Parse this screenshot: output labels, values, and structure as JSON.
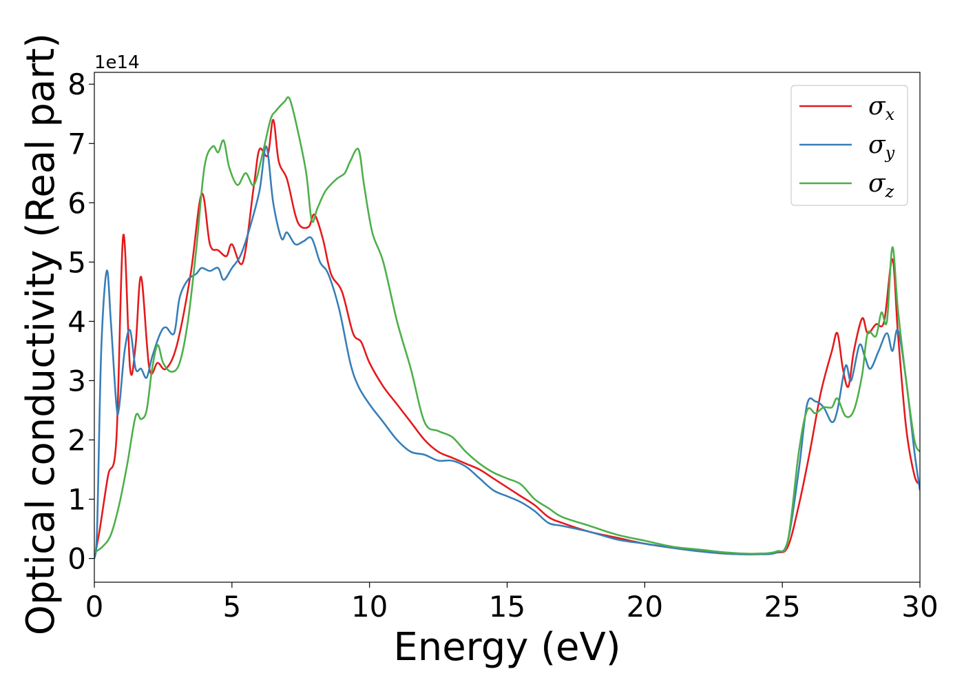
{
  "chart_data": {
    "type": "line",
    "title": "",
    "xlabel": "Energy (eV)",
    "ylabel": "Optical conductivity (Real part)",
    "y_offset_label": "1e14",
    "xlim": [
      0,
      30
    ],
    "ylim": [
      -0.4,
      8.2
    ],
    "xticks": [
      0,
      5,
      10,
      15,
      20,
      25,
      30
    ],
    "xtick_labels": [
      "0",
      "5",
      "10",
      "15",
      "20",
      "25",
      "30"
    ],
    "yticks": [
      0,
      1,
      2,
      3,
      4,
      5,
      6,
      7,
      8
    ],
    "ytick_labels": [
      "0",
      "1",
      "2",
      "3",
      "4",
      "5",
      "6",
      "7",
      "8"
    ],
    "grid": false,
    "legend_position": "top-right",
    "series": [
      {
        "name": "σ",
        "subscript": "x",
        "color": "#e41a1c",
        "x": [
          0,
          0.2,
          0.5,
          0.8,
          1.05,
          1.3,
          1.5,
          1.7,
          2.0,
          2.3,
          2.6,
          3.0,
          3.5,
          3.9,
          4.2,
          4.5,
          4.8,
          5.0,
          5.4,
          5.8,
          6.0,
          6.3,
          6.5,
          6.7,
          7.0,
          7.3,
          7.5,
          7.8,
          8.0,
          8.3,
          8.6,
          9.0,
          9.4,
          9.7,
          10.0,
          10.5,
          11.0,
          11.5,
          12.0,
          12.5,
          13.0,
          13.5,
          14.0,
          14.5,
          15.0,
          15.5,
          16.0,
          16.5,
          17.0,
          18.0,
          19.0,
          20.0,
          21.0,
          22.0,
          23.0,
          24.0,
          24.8,
          25.2,
          25.6,
          26.0,
          26.4,
          26.8,
          27.0,
          27.2,
          27.4,
          27.6,
          27.9,
          28.1,
          28.4,
          28.7,
          29.0,
          29.2,
          29.5,
          29.8,
          30.0
        ],
        "values": [
          0.0,
          0.5,
          1.4,
          2.0,
          5.45,
          3.2,
          3.6,
          4.75,
          3.2,
          3.3,
          3.2,
          3.6,
          4.8,
          6.15,
          5.3,
          5.2,
          5.1,
          5.3,
          5.0,
          6.3,
          6.9,
          6.8,
          7.4,
          6.7,
          6.4,
          5.8,
          5.6,
          5.6,
          5.8,
          5.4,
          4.8,
          4.5,
          3.8,
          3.65,
          3.3,
          2.9,
          2.6,
          2.3,
          2.0,
          1.8,
          1.7,
          1.6,
          1.5,
          1.35,
          1.2,
          1.05,
          0.9,
          0.7,
          0.6,
          0.45,
          0.35,
          0.25,
          0.18,
          0.12,
          0.08,
          0.08,
          0.1,
          0.2,
          0.9,
          1.8,
          2.8,
          3.5,
          3.8,
          3.2,
          2.9,
          3.5,
          4.05,
          3.8,
          3.95,
          4.0,
          5.05,
          3.8,
          2.2,
          1.4,
          1.25
        ]
      },
      {
        "name": "σ",
        "subscript": "y",
        "color": "#377eb8",
        "x": [
          0,
          0.1,
          0.25,
          0.45,
          0.6,
          0.8,
          0.9,
          1.1,
          1.3,
          1.5,
          1.7,
          1.9,
          2.1,
          2.4,
          2.6,
          2.9,
          3.1,
          3.4,
          3.7,
          3.9,
          4.2,
          4.5,
          4.7,
          5.0,
          5.3,
          5.6,
          6.0,
          6.25,
          6.5,
          6.8,
          7.0,
          7.3,
          7.6,
          7.9,
          8.2,
          8.5,
          8.9,
          9.3,
          9.6,
          10.0,
          10.5,
          11.0,
          11.5,
          12.0,
          12.5,
          13.0,
          13.5,
          14.0,
          14.5,
          15.0,
          15.5,
          16.0,
          16.5,
          17.0,
          18.0,
          19.0,
          20.0,
          21.0,
          22.0,
          23.0,
          24.0,
          24.8,
          25.2,
          25.6,
          25.9,
          26.2,
          26.5,
          26.8,
          27.0,
          27.3,
          27.5,
          27.8,
          28.0,
          28.2,
          28.5,
          28.8,
          29.0,
          29.2,
          29.5,
          29.8,
          30.0
        ],
        "values": [
          0.0,
          0.5,
          3.5,
          4.85,
          4.0,
          2.6,
          2.55,
          3.5,
          3.85,
          3.2,
          3.2,
          3.05,
          3.4,
          3.8,
          3.9,
          3.8,
          4.4,
          4.7,
          4.8,
          4.9,
          4.85,
          4.9,
          4.7,
          4.9,
          5.1,
          5.5,
          6.2,
          6.95,
          6.0,
          5.4,
          5.5,
          5.3,
          5.35,
          5.4,
          5.0,
          4.8,
          4.2,
          3.3,
          2.9,
          2.6,
          2.3,
          2.0,
          1.8,
          1.75,
          1.65,
          1.65,
          1.55,
          1.35,
          1.15,
          1.05,
          0.95,
          0.8,
          0.6,
          0.55,
          0.45,
          0.32,
          0.25,
          0.18,
          0.12,
          0.08,
          0.07,
          0.1,
          0.3,
          1.5,
          2.6,
          2.65,
          2.55,
          2.3,
          2.5,
          3.25,
          3.0,
          3.6,
          3.4,
          3.2,
          3.5,
          3.8,
          3.5,
          3.85,
          3.0,
          1.8,
          1.15
        ]
      },
      {
        "name": "σ",
        "subscript": "z",
        "color": "#4daf4a",
        "x": [
          0,
          0.3,
          0.6,
          0.9,
          1.2,
          1.5,
          1.7,
          1.9,
          2.1,
          2.3,
          2.5,
          2.8,
          3.1,
          3.4,
          3.7,
          4.0,
          4.3,
          4.5,
          4.7,
          4.9,
          5.2,
          5.5,
          5.8,
          6.1,
          6.4,
          6.6,
          6.9,
          7.1,
          7.4,
          7.7,
          7.9,
          8.1,
          8.4,
          8.8,
          9.1,
          9.3,
          9.6,
          9.8,
          10.1,
          10.5,
          11.0,
          11.5,
          12.0,
          12.5,
          13.0,
          13.5,
          14.0,
          14.5,
          15.0,
          15.5,
          16.0,
          16.5,
          17.0,
          18.0,
          19.0,
          20.0,
          21.0,
          22.0,
          23.0,
          24.0,
          24.8,
          25.2,
          25.6,
          25.9,
          26.2,
          26.5,
          26.8,
          27.0,
          27.3,
          27.6,
          27.9,
          28.1,
          28.4,
          28.6,
          28.8,
          29.0,
          29.2,
          29.5,
          29.8,
          30.0
        ],
        "values": [
          0.1,
          0.2,
          0.4,
          0.9,
          1.6,
          2.4,
          2.35,
          2.5,
          3.2,
          3.6,
          3.3,
          3.15,
          3.3,
          4.0,
          5.2,
          6.6,
          6.95,
          6.85,
          7.05,
          6.6,
          6.3,
          6.5,
          6.3,
          6.8,
          7.4,
          7.55,
          7.7,
          7.75,
          7.2,
          6.5,
          5.7,
          5.9,
          6.2,
          6.4,
          6.5,
          6.7,
          6.9,
          6.3,
          5.5,
          5.0,
          4.0,
          3.2,
          2.3,
          2.15,
          2.05,
          1.8,
          1.6,
          1.45,
          1.35,
          1.25,
          1.0,
          0.85,
          0.7,
          0.55,
          0.4,
          0.3,
          0.2,
          0.15,
          0.1,
          0.08,
          0.12,
          0.3,
          1.8,
          2.5,
          2.45,
          2.55,
          2.55,
          2.7,
          2.4,
          2.5,
          3.1,
          3.8,
          3.75,
          4.15,
          4.0,
          5.25,
          4.2,
          3.0,
          2.0,
          1.8
        ]
      }
    ]
  }
}
